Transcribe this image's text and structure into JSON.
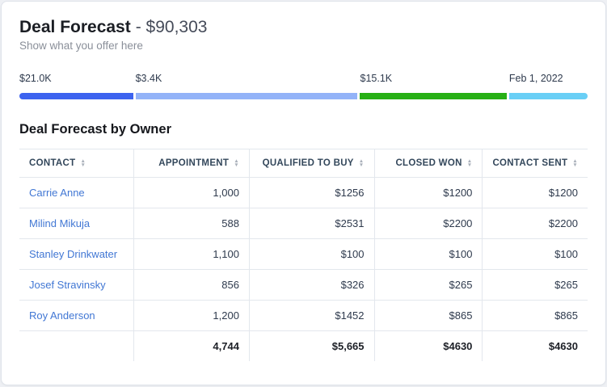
{
  "colors": {
    "link": "#4177d4",
    "border": "#e3e7ed"
  },
  "header": {
    "title": "Deal Forecast",
    "amount": "- $90,303",
    "subtitle": "Show what you offer here"
  },
  "progress": {
    "segments": [
      {
        "label": "$21.0K",
        "color": "#3d63ef",
        "width_pct": 20.0
      },
      {
        "label": "$3.4K",
        "color": "#93b3f8",
        "width_pct": 39.1
      },
      {
        "label": "$15.1K",
        "color": "#27b015",
        "width_pct": 25.8
      },
      {
        "label": "Feb 1, 2022",
        "color": "#69cff6",
        "width_pct": 13.8
      }
    ]
  },
  "table": {
    "title": "Deal Forecast by Owner",
    "columns": [
      "CONTACT",
      "APPOINTMENT",
      "QUALIFIED TO BUY",
      "CLOSED WON",
      "CONTACT SENT"
    ],
    "rows": [
      {
        "contact": "Carrie Anne",
        "values": [
          "1,000",
          "$1256",
          "$1200",
          "$1200"
        ]
      },
      {
        "contact": "Milind Mikuja",
        "values": [
          "588",
          "$2531",
          "$2200",
          "$2200"
        ]
      },
      {
        "contact": "Stanley Drinkwater",
        "values": [
          "1,100",
          "$100",
          "$100",
          "$100"
        ]
      },
      {
        "contact": "Josef Stravinsky",
        "values": [
          "856",
          "$326",
          "$265",
          "$265"
        ]
      },
      {
        "contact": "Roy Anderson",
        "values": [
          "1,200",
          "$1452",
          "$865",
          "$865"
        ]
      }
    ],
    "totals": [
      "4,744",
      "$5,665",
      "$4630",
      "$4630"
    ]
  }
}
